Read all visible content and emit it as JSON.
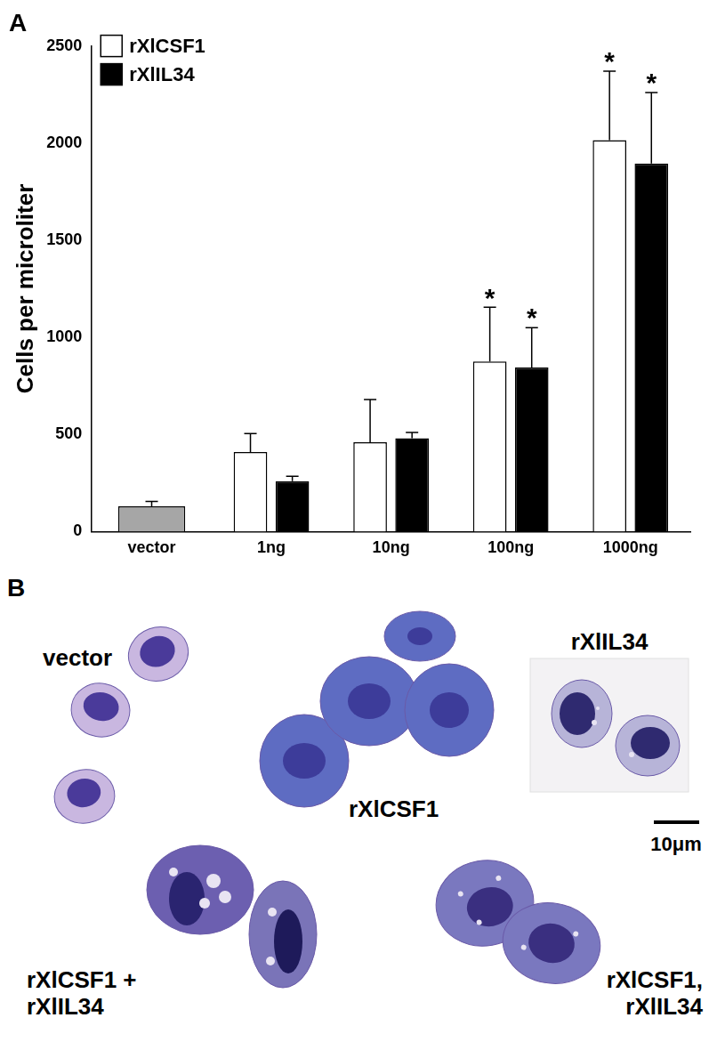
{
  "chart_data": {
    "type": "bar",
    "title": "A",
    "y_label": "Cells per microliter",
    "categories": [
      "vector",
      "1ng",
      "10ng",
      "100ng",
      "1000ng"
    ],
    "series": [
      {
        "color": "#a6a6a6",
        "values": [
          130,
          null,
          null,
          null,
          null
        ],
        "errors": [
          25,
          null,
          null,
          null,
          null
        ]
      },
      {
        "name": "rXlCSF1",
        "color": "#ffffff",
        "values": [
          null,
          410,
          460,
          875,
          2015
        ],
        "errors": [
          null,
          95,
          220,
          280,
          355
        ]
      },
      {
        "name": "rXlIL34",
        "color": "#000000",
        "values": [
          null,
          260,
          480,
          845,
          1895
        ],
        "errors": [
          null,
          25,
          30,
          205,
          365
        ]
      }
    ],
    "annotations": [
      {
        "text": "*",
        "series": 1,
        "category": 3
      },
      {
        "text": "*",
        "series": 2,
        "category": 3
      },
      {
        "text": "*",
        "series": 1,
        "category": 4
      },
      {
        "text": "*",
        "series": 2,
        "category": 4
      }
    ],
    "ylim": [
      0,
      2500
    ],
    "yticks": [
      0,
      500,
      1000,
      1500,
      2000,
      2500
    ],
    "grid": false,
    "legend": "upper left"
  },
  "panel_b": {
    "label": "B",
    "images": [
      {
        "caption": [
          "vector"
        ]
      },
      {
        "caption": [
          "rXlCSF1"
        ]
      },
      {
        "caption": [
          "rXlIL34"
        ]
      },
      {
        "caption": [
          "rXlCSF1 +",
          "rXlIL34"
        ]
      },
      {
        "caption": [
          "rXlCSF1,",
          "rXlIL34"
        ]
      }
    ],
    "scale_bar": "10μm"
  }
}
